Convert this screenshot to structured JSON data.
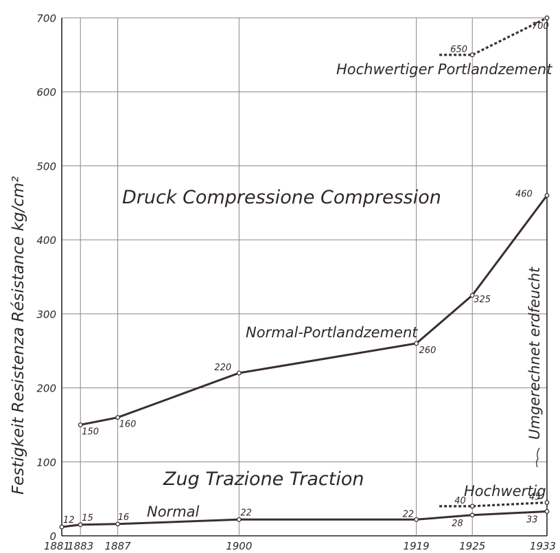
{
  "chart_data": {
    "type": "line",
    "ylabel": "Festigkeit   Resistenza   Résistance   kg/cm²",
    "x_ticks": [
      1881,
      1883,
      1887,
      1900,
      1919,
      1925,
      1933
    ],
    "y_ticks": [
      0,
      100,
      200,
      300,
      400,
      500,
      600,
      700
    ],
    "xlim": [
      1881,
      1933
    ],
    "ylim": [
      0,
      700
    ],
    "grid": true,
    "annotations": {
      "compression_title": "Druck   Compressione   Compression",
      "tension_title": "Zug   Trazione   Traction",
      "side_note": "Umgerechnet erdfeucht"
    },
    "series": [
      {
        "name": "Normal-Portlandzement",
        "style": "solid",
        "x": [
          1883,
          1887,
          1900,
          1919,
          1925,
          1933
        ],
        "y": [
          150,
          160,
          220,
          260,
          325,
          460
        ],
        "labels": [
          "150",
          "160",
          "220",
          "260",
          "325",
          "460"
        ]
      },
      {
        "name": "Hochwertiger Portlandzement",
        "style": "dashed",
        "x": [
          1925,
          1933
        ],
        "y": [
          650,
          700
        ],
        "labels": [
          "650",
          "700"
        ]
      },
      {
        "name": "Normal",
        "style": "solid",
        "x": [
          1881,
          1883,
          1887,
          1900,
          1919,
          1925,
          1933
        ],
        "y": [
          12,
          15,
          16,
          22,
          22,
          28,
          33
        ],
        "labels": [
          "12",
          "15",
          "16",
          "22",
          "22",
          "28",
          "33"
        ]
      },
      {
        "name": "Hochwertig",
        "style": "dashed",
        "x": [
          1925,
          1933
        ],
        "y": [
          40,
          45
        ],
        "labels": [
          "40",
          "45"
        ]
      }
    ],
    "colors": {
      "ink": "#3a2e2e",
      "grid": "#8a8484",
      "background": "#ffffff"
    }
  }
}
